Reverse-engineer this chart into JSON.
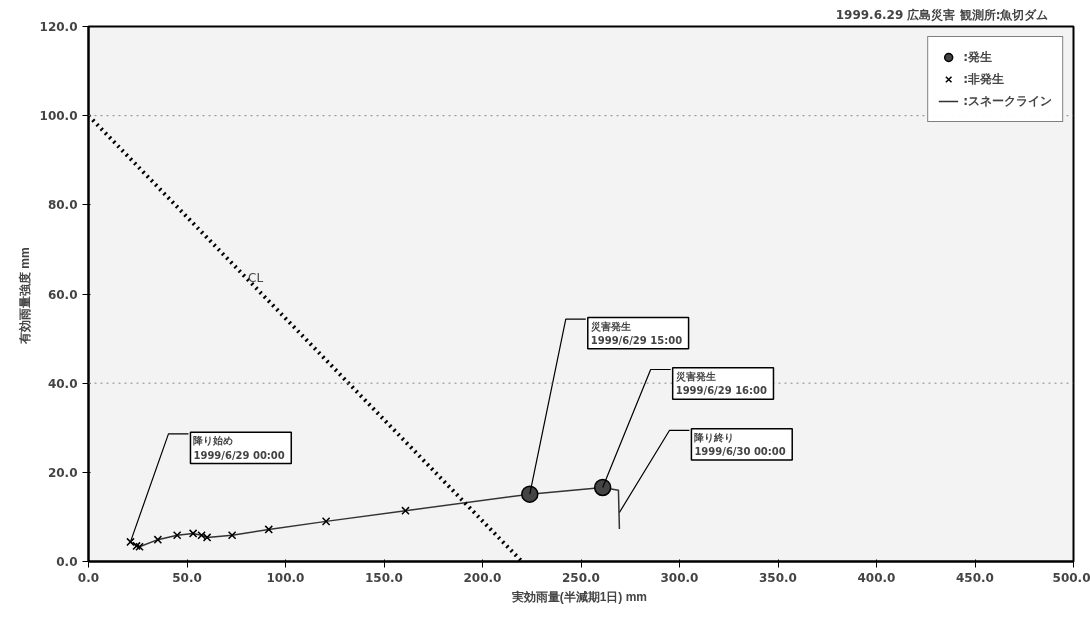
{
  "chart_data": {
    "type": "scatter",
    "title": "1999.6.29  広島災害      観測所:魚切ダム",
    "xlabel": "実効雨量(半減期1日)  mm",
    "ylabel": "有効雨量強度  mm",
    "xlim": [
      0,
      500
    ],
    "ylim": [
      0,
      120
    ],
    "xticks": [
      {
        "value": 0,
        "label": "0.0"
      },
      {
        "value": 50,
        "label": "50.0"
      },
      {
        "value": 100,
        "label": "100.0"
      },
      {
        "value": 150,
        "label": "150.0"
      },
      {
        "value": 200,
        "label": "200.0"
      },
      {
        "value": 250,
        "label": "250.0"
      },
      {
        "value": 300,
        "label": "300.0"
      },
      {
        "value": 350,
        "label": "350.0"
      },
      {
        "value": 400,
        "label": "400.0"
      },
      {
        "value": 450,
        "label": "450.0"
      },
      {
        "value": 500,
        "label": "500.0"
      }
    ],
    "yticks": [
      {
        "value": 0,
        "label": "0.0"
      },
      {
        "value": 20,
        "label": "20.0"
      },
      {
        "value": 40,
        "label": "40.0"
      },
      {
        "value": 60,
        "label": "60.0"
      },
      {
        "value": 80,
        "label": "80.0"
      },
      {
        "value": 100,
        "label": "100.0"
      },
      {
        "value": 120,
        "label": "120.0"
      }
    ],
    "grid": false,
    "legend": "top right",
    "series": [
      {
        "name": ":発生",
        "color": "#444444",
        "marker": "circle",
        "x": [
          224,
          261
        ],
        "values": [
          15.1,
          16.6
        ]
      },
      {
        "name": ":非発生",
        "color": "#000000",
        "marker": "cross",
        "x": [
          21.3,
          24.4,
          25.9,
          35.2,
          45.0,
          53.1,
          57.4,
          60.2,
          72.9,
          91.5,
          120.6,
          160.9
        ],
        "values": [
          4.4,
          3.5,
          3.3,
          4.9,
          5.9,
          6.3,
          5.9,
          5.4,
          5.9,
          7.2,
          9.0,
          11.4
        ]
      },
      {
        "type": "line",
        "name": ":スネークライン",
        "color": "#333333",
        "marker": "none",
        "line_style": "solid",
        "x": [
          21.3,
          24.4,
          25.9,
          35.2,
          45.0,
          53.1,
          57.4,
          60.2,
          72.9,
          91.5,
          120.6,
          160.9,
          224,
          261,
          269,
          269.5
        ],
        "values": [
          4.4,
          3.5,
          3.3,
          4.9,
          5.9,
          6.3,
          5.9,
          5.4,
          5.9,
          7.2,
          9.0,
          11.4,
          15.1,
          16.6,
          16.0,
          7.3
        ]
      },
      {
        "type": "line",
        "color": "#000000",
        "marker": "none",
        "line_style": "dotted",
        "x": [
          0,
          220
        ],
        "values": [
          100,
          0
        ]
      }
    ],
    "ref_lines": [
      {
        "axis": "y",
        "value": 40,
        "color": "#888888",
        "line_style": "dotted"
      },
      {
        "axis": "y",
        "value": 100,
        "color": "#888888",
        "line_style": "dotted"
      }
    ],
    "annotations": [
      {
        "text": "降り始め\n1999/6/29  00:00",
        "x": 21.3,
        "y": 4.4
      },
      {
        "text": "災害発生\n1999/6/29  15:00",
        "x": 224,
        "y": 15.1
      },
      {
        "text": "災害発生\n1999/6/29  16:00",
        "x": 261,
        "y": 16.6
      },
      {
        "text": "降り終り\n1999/6/30  00:00",
        "x": 269.5,
        "y": 11
      },
      {
        "text": "CL",
        "x": 81,
        "y": 62
      }
    ]
  }
}
